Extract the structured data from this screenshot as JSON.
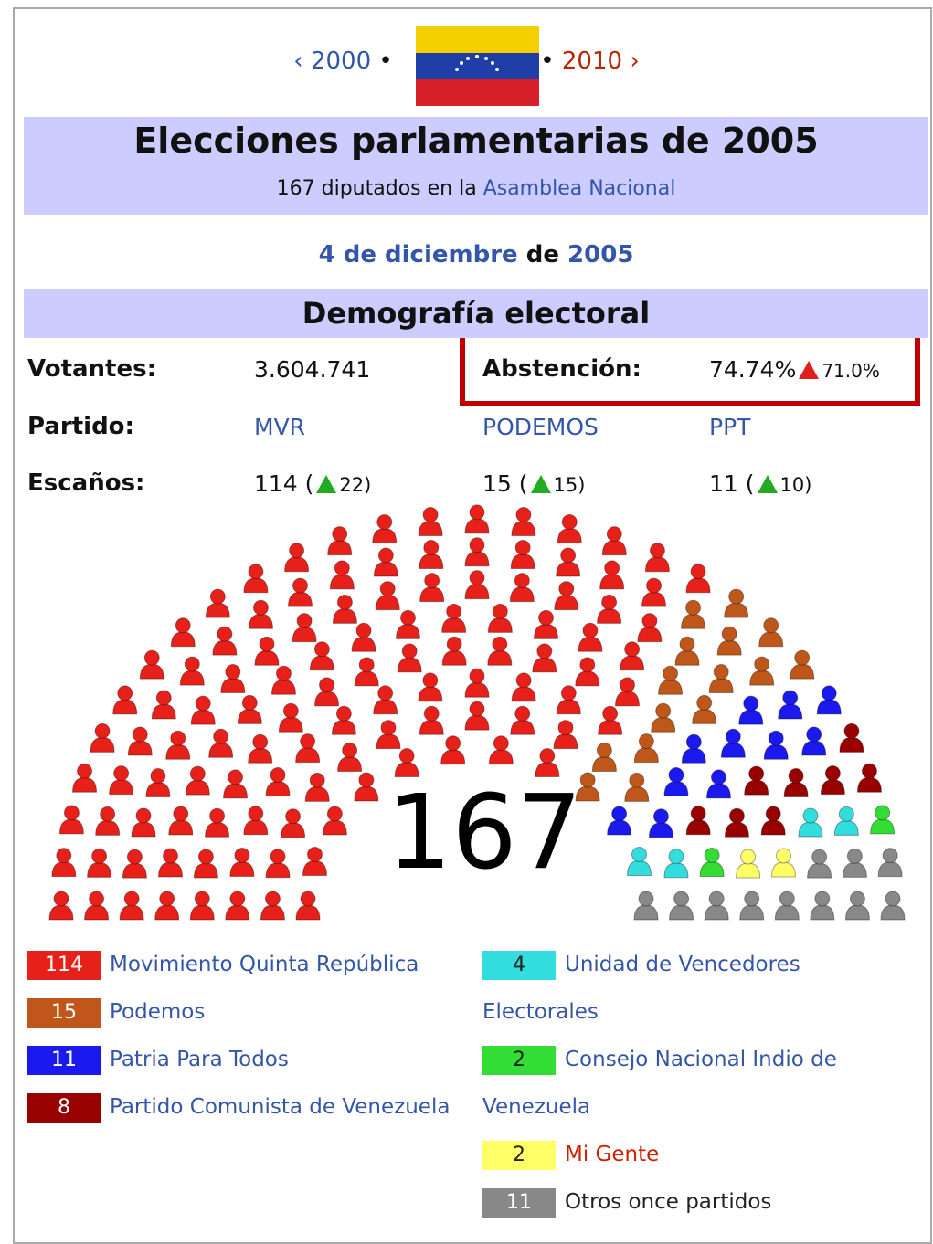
{
  "nav": {
    "prev_arrow": "‹",
    "prev": "2000",
    "sep": "•",
    "next": "2010",
    "next_arrow": "›"
  },
  "header": {
    "title": "Elecciones parlamentarias de 2005",
    "subtitle": "167 diputados en la",
    "subtitle_link": "Asamblea Nacional"
  },
  "date": {
    "day": "4 de diciembre",
    "sep": "de",
    "year": "2005"
  },
  "section": "Demografía electoral",
  "stats": {
    "voters_label": "Votantes:",
    "voters": "3.604.741",
    "abstention_label": "Abstención:",
    "abstention": "74.74%",
    "abstention_change": "71.0%",
    "party_label": "Partido:",
    "parties": [
      "MVR",
      "PODEMOS",
      "PPT"
    ],
    "seats_label": "Escaños:",
    "seats": [
      {
        "before": "114 (",
        "after": "22)"
      },
      {
        "before": "15 (",
        "after": "15)"
      },
      {
        "before": "11 (",
        "after": "10)"
      }
    ]
  },
  "hemicycle": {
    "total": 167
  },
  "legend": [
    {
      "count": 114,
      "name": "Movimiento Quinta República",
      "color": "#e8201a",
      "name_color": "#3355aa"
    },
    {
      "count": 15,
      "name": "Podemos",
      "color": "#c0571a",
      "name_color": "#3355aa"
    },
    {
      "count": 11,
      "name": "Patria Para Todos",
      "color": "#1a1aee",
      "name_color": "#3355aa"
    },
    {
      "count": 8,
      "name": "Partido Comunista de Venezuela",
      "color": "#990000",
      "name_color": "#3355aa"
    },
    {
      "count": 4,
      "name": "Unidad de Vencedores Electorales",
      "color": "#33dddd",
      "name_color": "#3355aa"
    },
    {
      "count": 2,
      "name": "Consejo Nacional Indio de Venezuela",
      "color": "#33dd33",
      "name_color": "#3355aa"
    },
    {
      "count": 2,
      "name": "Mi Gente",
      "color": "#ffff66",
      "name_color": "#cc2200"
    },
    {
      "count": 11,
      "name": "Otros once partidos",
      "color": "#888888",
      "name_color": "#222222"
    }
  ]
}
